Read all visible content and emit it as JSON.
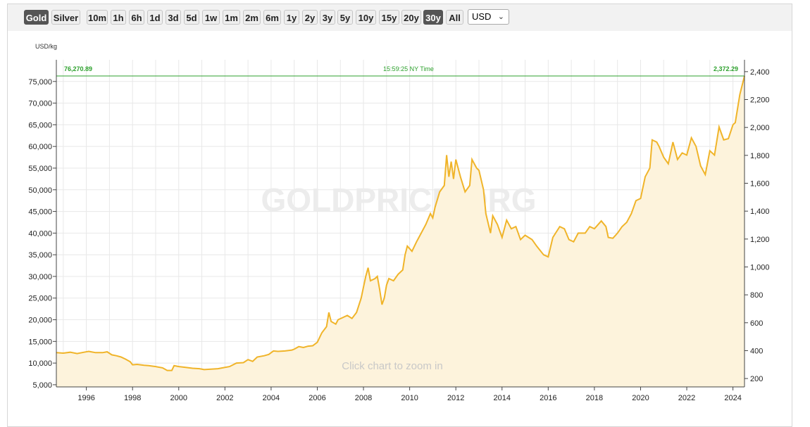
{
  "toolbar": {
    "metal_buttons": [
      {
        "label": "Gold",
        "active": true
      },
      {
        "label": "Silver",
        "active": false
      }
    ],
    "range_buttons": [
      {
        "label": "10m",
        "active": false
      },
      {
        "label": "1h",
        "active": false
      },
      {
        "label": "6h",
        "active": false
      },
      {
        "label": "1d",
        "active": false
      },
      {
        "label": "3d",
        "active": false
      },
      {
        "label": "5d",
        "active": false
      },
      {
        "label": "1w",
        "active": false
      },
      {
        "label": "1m",
        "active": false
      },
      {
        "label": "2m",
        "active": false
      },
      {
        "label": "6m",
        "active": false
      },
      {
        "label": "1y",
        "active": false
      },
      {
        "label": "2y",
        "active": false
      },
      {
        "label": "3y",
        "active": false
      },
      {
        "label": "5y",
        "active": false
      },
      {
        "label": "10y",
        "active": false
      },
      {
        "label": "15y",
        "active": false
      },
      {
        "label": "20y",
        "active": false
      },
      {
        "label": "30y",
        "active": true
      },
      {
        "label": "All",
        "active": false
      }
    ],
    "currency": "USD"
  },
  "colors": {
    "line": "#f0b429",
    "fill": "#fdf3dc",
    "current_line": "#2ca02c",
    "active_button": "#555555"
  },
  "chart_data": {
    "type": "area",
    "unit_label": "USD/kg",
    "current_left_value": "76,270.89",
    "current_right_value": "2,372.29",
    "current_time": "15:59:25 NY Time",
    "watermark": "GOLDPRICE.ORG",
    "zoom_hint": "Click chart to zoom in",
    "x_range": [
      1994.7,
      2024.5
    ],
    "x_ticks": [
      "1996",
      "1998",
      "2000",
      "2002",
      "2004",
      "2006",
      "2008",
      "2010",
      "2012",
      "2014",
      "2016",
      "2018",
      "2020",
      "2022",
      "2024"
    ],
    "left_axis": {
      "range": [
        4500,
        80000
      ],
      "ticks": [
        "5,000",
        "10,000",
        "15,000",
        "20,000",
        "25,000",
        "30,000",
        "35,000",
        "40,000",
        "45,000",
        "50,000",
        "55,000",
        "60,000",
        "65,000",
        "70,000",
        "75,000"
      ]
    },
    "right_axis": {
      "range": [
        140,
        2485
      ],
      "ticks": [
        "200",
        "400",
        "600",
        "800",
        "1,000",
        "1,200",
        "1,400",
        "1,600",
        "1,800",
        "2,000",
        "2,200",
        "2,400"
      ]
    },
    "grid": true,
    "series": [
      {
        "name": "Gold",
        "points": [
          [
            1994.7,
            12400
          ],
          [
            1995.0,
            12300
          ],
          [
            1995.3,
            12500
          ],
          [
            1995.6,
            12200
          ],
          [
            1995.9,
            12500
          ],
          [
            1996.1,
            12700
          ],
          [
            1996.4,
            12400
          ],
          [
            1996.7,
            12400
          ],
          [
            1996.9,
            12600
          ],
          [
            1997.1,
            11900
          ],
          [
            1997.3,
            11700
          ],
          [
            1997.5,
            11400
          ],
          [
            1997.7,
            10900
          ],
          [
            1997.9,
            10300
          ],
          [
            1998.0,
            9600
          ],
          [
            1998.2,
            9700
          ],
          [
            1998.5,
            9500
          ],
          [
            1998.7,
            9400
          ],
          [
            1999.0,
            9200
          ],
          [
            1999.3,
            8900
          ],
          [
            1999.5,
            8300
          ],
          [
            1999.7,
            8300
          ],
          [
            1999.8,
            9400
          ],
          [
            2000.0,
            9200
          ],
          [
            2000.3,
            9000
          ],
          [
            2000.6,
            8800
          ],
          [
            2000.9,
            8700
          ],
          [
            2001.1,
            8500
          ],
          [
            2001.4,
            8600
          ],
          [
            2001.7,
            8700
          ],
          [
            2001.9,
            8900
          ],
          [
            2002.2,
            9200
          ],
          [
            2002.5,
            10000
          ],
          [
            2002.8,
            10100
          ],
          [
            2003.0,
            10800
          ],
          [
            2003.2,
            10400
          ],
          [
            2003.4,
            11400
          ],
          [
            2003.7,
            11700
          ],
          [
            2003.9,
            12000
          ],
          [
            2004.1,
            12800
          ],
          [
            2004.3,
            12700
          ],
          [
            2004.6,
            12800
          ],
          [
            2004.9,
            13000
          ],
          [
            2005.0,
            13200
          ],
          [
            2005.2,
            13800
          ],
          [
            2005.4,
            13600
          ],
          [
            2005.6,
            13900
          ],
          [
            2005.8,
            14000
          ],
          [
            2006.0,
            14800
          ],
          [
            2006.2,
            17000
          ],
          [
            2006.4,
            18400
          ],
          [
            2006.5,
            21700
          ],
          [
            2006.6,
            19600
          ],
          [
            2006.8,
            19000
          ],
          [
            2006.9,
            20000
          ],
          [
            2007.1,
            20500
          ],
          [
            2007.3,
            21000
          ],
          [
            2007.5,
            20300
          ],
          [
            2007.7,
            21700
          ],
          [
            2007.9,
            25000
          ],
          [
            2008.0,
            27500
          ],
          [
            2008.1,
            30000
          ],
          [
            2008.2,
            32000
          ],
          [
            2008.3,
            29000
          ],
          [
            2008.5,
            29500
          ],
          [
            2008.6,
            30000
          ],
          [
            2008.7,
            27000
          ],
          [
            2008.8,
            23500
          ],
          [
            2008.9,
            25000
          ],
          [
            2009.0,
            28000
          ],
          [
            2009.1,
            29500
          ],
          [
            2009.3,
            29000
          ],
          [
            2009.5,
            30500
          ],
          [
            2009.7,
            31500
          ],
          [
            2009.8,
            35000
          ],
          [
            2009.9,
            37000
          ],
          [
            2010.1,
            35800
          ],
          [
            2010.3,
            38000
          ],
          [
            2010.5,
            40000
          ],
          [
            2010.7,
            42000
          ],
          [
            2010.9,
            44500
          ],
          [
            2011.0,
            43500
          ],
          [
            2011.1,
            46000
          ],
          [
            2011.3,
            49500
          ],
          [
            2011.5,
            51000
          ],
          [
            2011.6,
            58000
          ],
          [
            2011.7,
            53000
          ],
          [
            2011.8,
            56500
          ],
          [
            2011.9,
            52500
          ],
          [
            2012.0,
            57000
          ],
          [
            2012.2,
            53000
          ],
          [
            2012.4,
            49500
          ],
          [
            2012.6,
            51000
          ],
          [
            2012.7,
            57000
          ],
          [
            2012.9,
            55000
          ],
          [
            2013.0,
            54500
          ],
          [
            2013.2,
            50000
          ],
          [
            2013.3,
            44500
          ],
          [
            2013.5,
            40000
          ],
          [
            2013.6,
            44000
          ],
          [
            2013.8,
            42000
          ],
          [
            2014.0,
            39000
          ],
          [
            2014.2,
            43000
          ],
          [
            2014.4,
            41000
          ],
          [
            2014.6,
            41500
          ],
          [
            2014.8,
            38500
          ],
          [
            2015.0,
            39500
          ],
          [
            2015.3,
            38500
          ],
          [
            2015.5,
            37000
          ],
          [
            2015.8,
            35000
          ],
          [
            2016.0,
            34500
          ],
          [
            2016.2,
            39000
          ],
          [
            2016.5,
            41500
          ],
          [
            2016.7,
            41000
          ],
          [
            2016.9,
            38500
          ],
          [
            2017.1,
            38000
          ],
          [
            2017.3,
            40000
          ],
          [
            2017.6,
            40000
          ],
          [
            2017.8,
            41500
          ],
          [
            2018.0,
            41000
          ],
          [
            2018.3,
            42800
          ],
          [
            2018.5,
            41500
          ],
          [
            2018.6,
            39000
          ],
          [
            2018.8,
            38800
          ],
          [
            2019.0,
            40000
          ],
          [
            2019.2,
            41500
          ],
          [
            2019.4,
            42500
          ],
          [
            2019.6,
            44500
          ],
          [
            2019.8,
            47500
          ],
          [
            2020.0,
            48000
          ],
          [
            2020.2,
            53000
          ],
          [
            2020.4,
            55000
          ],
          [
            2020.5,
            61500
          ],
          [
            2020.7,
            61000
          ],
          [
            2020.8,
            60000
          ],
          [
            2021.0,
            57500
          ],
          [
            2021.2,
            56000
          ],
          [
            2021.4,
            61000
          ],
          [
            2021.6,
            57000
          ],
          [
            2021.8,
            58500
          ],
          [
            2022.0,
            58000
          ],
          [
            2022.2,
            62000
          ],
          [
            2022.4,
            60000
          ],
          [
            2022.6,
            55500
          ],
          [
            2022.8,
            53500
          ],
          [
            2023.0,
            59000
          ],
          [
            2023.2,
            58000
          ],
          [
            2023.4,
            64500
          ],
          [
            2023.6,
            61500
          ],
          [
            2023.8,
            61800
          ],
          [
            2024.0,
            65000
          ],
          [
            2024.1,
            65500
          ],
          [
            2024.3,
            72000
          ],
          [
            2024.5,
            76270
          ]
        ]
      }
    ]
  }
}
